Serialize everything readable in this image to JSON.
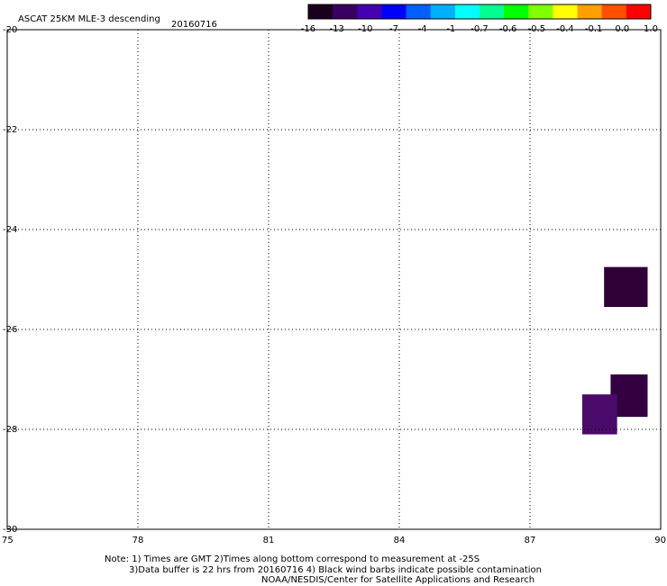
{
  "chart_data": {
    "type": "heatmap",
    "title": "ASCAT 25KM MLE-3 descending",
    "date": "20160716",
    "xlim": [
      75,
      90
    ],
    "ylim": [
      -30,
      -20
    ],
    "x_ticks": [
      "75",
      "78",
      "81",
      "84",
      "87",
      "90"
    ],
    "y_ticks": [
      "-20",
      "-22",
      "-24",
      "-26",
      "-28",
      "-30"
    ],
    "grid": true,
    "colorbar": {
      "placement": "top-right",
      "tick_labels": [
        "-16",
        "-13",
        "-10",
        "-7",
        "-4",
        "-1",
        "-0.7",
        "-0.6",
        "-0.5",
        "-0.4",
        "-0.1",
        "0.0",
        "1.0"
      ],
      "colors": [
        "#1a001f",
        "#3a0060",
        "#4400b0",
        "#0000ff",
        "#0060ff",
        "#00b0ff",
        "#00ffff",
        "#00ff90",
        "#00ff00",
        "#80ff00",
        "#ffff00",
        "#ffa000",
        "#ff5000",
        "#ff0000"
      ]
    },
    "cells": [
      {
        "lon": [
          88.7,
          89.7
        ],
        "lat": [
          -24.75,
          -25.55
        ],
        "color": "#2e0036"
      },
      {
        "lon": [
          88.85,
          89.7
        ],
        "lat": [
          -26.9,
          -27.75
        ],
        "color": "#330040"
      },
      {
        "lon": [
          88.2,
          89.0
        ],
        "lat": [
          -27.3,
          -28.1
        ],
        "color": "#4a0a6a"
      }
    ]
  },
  "notes": {
    "line1": "Note: 1) Times are GMT 2)Times along bottom correspond to measurement at -25S",
    "line2": "3)Data buffer is 22 hrs from 20160716 4) Black wind barbs indicate possible contamination",
    "line3": "NOAA/NESDIS/Center for Satellite Applications and Research"
  }
}
